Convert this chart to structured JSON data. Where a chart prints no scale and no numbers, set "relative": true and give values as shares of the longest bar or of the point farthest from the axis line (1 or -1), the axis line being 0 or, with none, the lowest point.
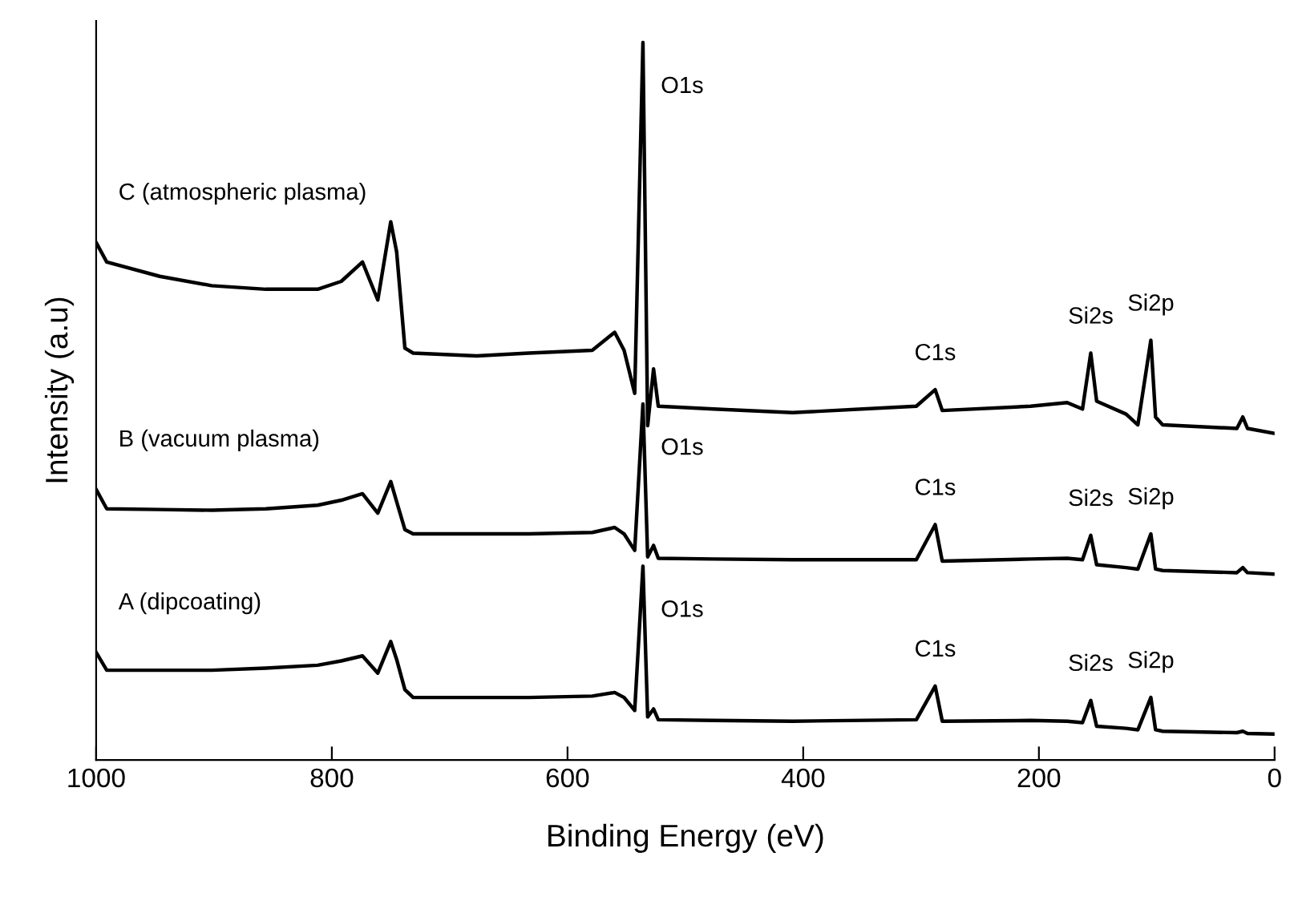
{
  "chart_data": {
    "type": "line",
    "relative": true,
    "xlabel": "Binding Energy (eV)",
    "ylabel": "Intensity (a.u)",
    "xlim": [
      1000,
      0
    ],
    "xticks": [
      1000,
      800,
      600,
      400,
      200,
      0
    ],
    "grid": false,
    "legend": false,
    "marker": "none",
    "line_style": "solid",
    "x": [
      1000,
      991,
      946,
      902,
      856,
      812,
      792,
      774,
      761,
      750,
      745,
      738,
      731,
      677,
      633,
      579,
      560,
      552,
      543,
      536,
      532,
      527,
      523,
      476,
      409,
      304,
      288,
      282,
      207,
      176,
      163,
      156,
      151,
      126,
      116,
      105,
      101,
      95,
      32,
      27,
      23,
      0
    ],
    "series": [
      {
        "name": "C (atmospheric plasma)",
        "color": "#000000",
        "values": [
          0.721,
          0.694,
          0.674,
          0.661,
          0.656,
          0.656,
          0.667,
          0.694,
          0.641,
          0.75,
          0.708,
          0.574,
          0.567,
          0.563,
          0.567,
          0.571,
          0.596,
          0.571,
          0.511,
          1.0,
          0.466,
          0.545,
          0.493,
          0.489,
          0.484,
          0.493,
          0.516,
          0.487,
          0.493,
          0.498,
          0.489,
          0.567,
          0.5,
          0.482,
          0.467,
          0.585,
          0.478,
          0.467,
          0.462,
          0.478,
          0.462,
          0.455
        ]
      },
      {
        "name": "B (vacuum plasma)",
        "color": "#000000",
        "values": [
          0.377,
          0.35,
          0.349,
          0.348,
          0.35,
          0.355,
          0.362,
          0.371,
          0.344,
          0.388,
          0.36,
          0.321,
          0.315,
          0.315,
          0.315,
          0.317,
          0.324,
          0.315,
          0.292,
          0.496,
          0.283,
          0.299,
          0.281,
          0.28,
          0.279,
          0.279,
          0.328,
          0.277,
          0.28,
          0.281,
          0.279,
          0.313,
          0.272,
          0.268,
          0.266,
          0.315,
          0.266,
          0.264,
          0.261,
          0.268,
          0.261,
          0.259
        ]
      },
      {
        "name": "A (dipcoating)",
        "color": "#000000",
        "values": [
          0.15,
          0.125,
          0.125,
          0.125,
          0.128,
          0.132,
          0.138,
          0.145,
          0.121,
          0.165,
          0.14,
          0.098,
          0.087,
          0.087,
          0.087,
          0.089,
          0.094,
          0.087,
          0.069,
          0.27,
          0.06,
          0.071,
          0.056,
          0.055,
          0.054,
          0.056,
          0.103,
          0.054,
          0.055,
          0.054,
          0.052,
          0.083,
          0.047,
          0.044,
          0.042,
          0.087,
          0.042,
          0.04,
          0.038,
          0.04,
          0.037,
          0.036
        ]
      }
    ],
    "annotations": [
      {
        "text": "O1s",
        "x": 536,
        "y": 1.0
      },
      {
        "text": "C1s",
        "x": 288,
        "y": 0.516
      },
      {
        "text": "Si2s",
        "x": 156,
        "y": 0.567
      },
      {
        "text": "Si2p",
        "x": 105,
        "y": 0.585
      },
      {
        "text": "O1s",
        "x": 536,
        "y": 0.496
      },
      {
        "text": "C1s",
        "x": 288,
        "y": 0.328
      },
      {
        "text": "Si2s",
        "x": 156,
        "y": 0.313
      },
      {
        "text": "Si2p",
        "x": 105,
        "y": 0.315
      },
      {
        "text": "O1s",
        "x": 536,
        "y": 0.27
      },
      {
        "text": "C1s",
        "x": 288,
        "y": 0.103
      },
      {
        "text": "Si2s",
        "x": 156,
        "y": 0.083
      },
      {
        "text": "Si2p",
        "x": 105,
        "y": 0.087
      }
    ]
  }
}
